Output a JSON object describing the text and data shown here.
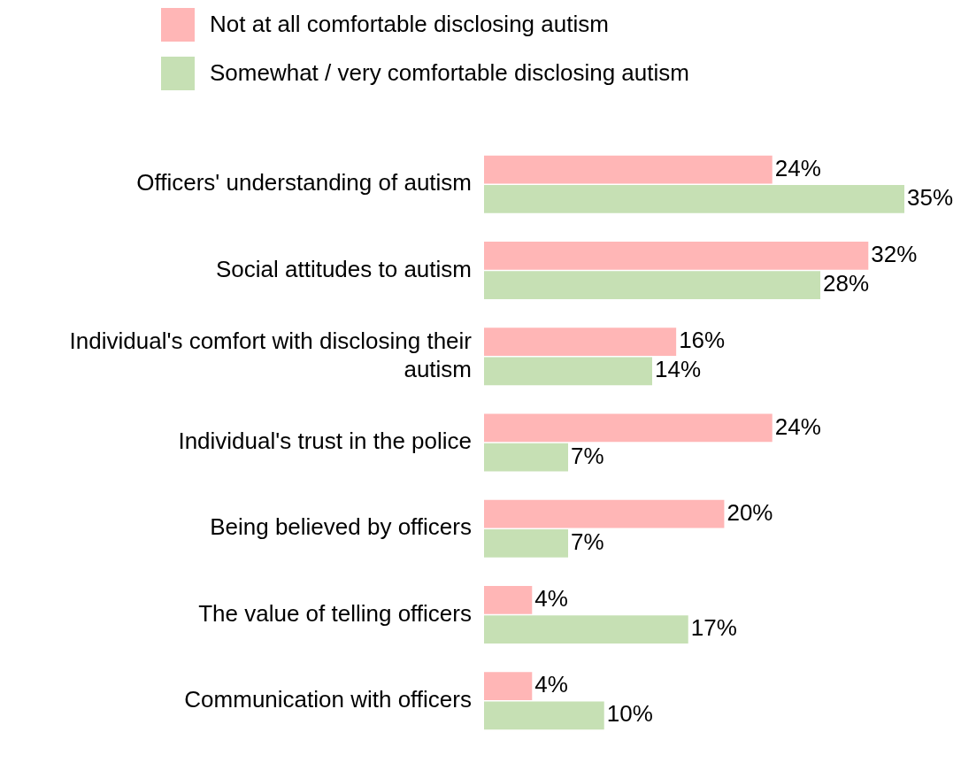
{
  "chart_data": {
    "type": "bar",
    "orientation": "horizontal",
    "legend": "top",
    "categories": [
      "Officers' understanding of autism",
      "Social attitudes to autism",
      "Individual's comfort with disclosing their autism",
      "Individual's trust in the police",
      "Being believed by officers",
      "The value of telling officers",
      "Communication with officers"
    ],
    "series": [
      {
        "name": "Not at all comfortable disclosing autism",
        "color": "#ffb6b6",
        "values": [
          24,
          32,
          16,
          24,
          20,
          4,
          4
        ],
        "value_labels": [
          "24%",
          "32%",
          "16%",
          "24%",
          "20%",
          "4%",
          "4%"
        ]
      },
      {
        "name": "Somewhat / very comfortable disclosing autism",
        "color": "#c6e0b4",
        "values": [
          35,
          28,
          14,
          7,
          7,
          17,
          10
        ],
        "value_labels": [
          "35%",
          "28%",
          "14%",
          "7%",
          "7%",
          "17%",
          "10%"
        ]
      }
    ]
  }
}
